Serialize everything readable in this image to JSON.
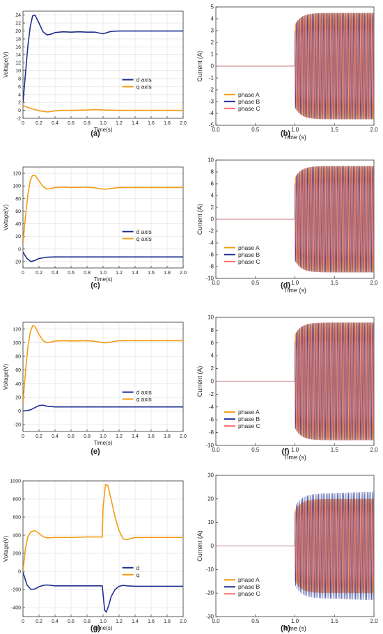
{
  "colors": {
    "d_axis": "#1f2e8f",
    "q_axis": "#f39c12",
    "phase_A": "#f39c12",
    "phase_B": "#1f2e8f",
    "phase_C": "#ff6b6b"
  },
  "chart_data": [
    {
      "id": "a",
      "type": "line",
      "caption": "(a)",
      "xlabel": "Time(s)",
      "ylabel": "Voltage(V)",
      "xlim": [
        0,
        2.0
      ],
      "ylim": [
        -2,
        25
      ],
      "xticks": [
        "0",
        "0.2",
        "0.4",
        "0.6",
        "0.8",
        "1.0",
        "1.2",
        "1.4",
        "1.6",
        "1.8",
        "2.0"
      ],
      "yticks": [
        "-2",
        "0",
        "2",
        "4",
        "6",
        "8",
        "10",
        "12",
        "14",
        "16",
        "18",
        "20",
        "22",
        "24"
      ],
      "grid": true,
      "legend": "center-right",
      "series": [
        {
          "name": "d axis",
          "color": "#1f2e8f",
          "x": [
            0,
            0.03,
            0.06,
            0.09,
            0.12,
            0.15,
            0.2,
            0.25,
            0.3,
            0.35,
            0.4,
            0.5,
            0.6,
            0.7,
            0.8,
            0.9,
            0.95,
            1.0,
            1.05,
            1.1,
            1.2,
            1.4,
            1.6,
            1.8,
            2.0
          ],
          "y": [
            2,
            9,
            16,
            21,
            23.8,
            24,
            22,
            19.8,
            19,
            19.2,
            19.6,
            19.8,
            19.7,
            19.8,
            19.7,
            19.7,
            19.5,
            19.3,
            19.6,
            19.9,
            20,
            20,
            20,
            20,
            20
          ]
        },
        {
          "name": "q axis",
          "color": "#f39c12",
          "x": [
            0,
            0.05,
            0.1,
            0.2,
            0.3,
            0.35,
            0.4,
            0.5,
            0.6,
            0.8,
            0.9,
            1.0,
            1.2,
            1.4,
            1.6,
            1.8,
            2.0
          ],
          "y": [
            1.2,
            0.8,
            0.5,
            -0.1,
            -0.4,
            -0.3,
            -0.1,
            0,
            0,
            0.1,
            0.2,
            0.1,
            0,
            0,
            0,
            0,
            0
          ]
        }
      ]
    },
    {
      "id": "b",
      "type": "line",
      "caption": "(b)",
      "xlabel": "Time (s)",
      "ylabel": "Current (A)",
      "xlim": [
        0,
        2.0
      ],
      "ylim": [
        -5,
        5
      ],
      "xticks": [
        "0.0",
        "0.5",
        "1.0",
        "1.5",
        "2.0"
      ],
      "yticks": [
        "-5",
        "-4",
        "-3",
        "-2",
        "-1",
        "0",
        "1",
        "2",
        "3",
        "4",
        "5"
      ],
      "grid": false,
      "legend": "lower-left",
      "t_start": 1.0,
      "amplitude_initial": 3.5,
      "amplitude_final": 4.5,
      "series": [
        {
          "name": "phase A",
          "color": "#f39c12"
        },
        {
          "name": "phase B",
          "color": "#1f2e8f"
        },
        {
          "name": "phase C",
          "color": "#ff6b6b"
        }
      ]
    },
    {
      "id": "c",
      "type": "line",
      "caption": "(c)",
      "xlabel": "Time(s)",
      "ylabel": "Voltage(V)",
      "xlim": [
        0,
        2.0
      ],
      "ylim": [
        -30,
        130
      ],
      "xticks": [
        "0",
        "0.2",
        "0.4",
        "0.6",
        "0.8",
        "1.0",
        "1.2",
        "1.4",
        "1.6",
        "1.8",
        "2.0"
      ],
      "yticks": [
        "-20",
        "0",
        "20",
        "40",
        "60",
        "80",
        "100",
        "120"
      ],
      "grid": true,
      "legend": "center-right",
      "series": [
        {
          "name": "d axis",
          "color": "#1f2e8f",
          "x": [
            0,
            0.05,
            0.1,
            0.15,
            0.2,
            0.3,
            0.4,
            0.6,
            0.8,
            1.0,
            1.2,
            1.4,
            1.6,
            1.8,
            2.0
          ],
          "y": [
            -5,
            -15,
            -20,
            -18,
            -15,
            -13,
            -12.5,
            -12.5,
            -12.5,
            -12.5,
            -12.5,
            -12.5,
            -12.5,
            -12.5,
            -12.5
          ]
        },
        {
          "name": "q axis",
          "color": "#f39c12",
          "x": [
            0,
            0.03,
            0.06,
            0.09,
            0.12,
            0.15,
            0.2,
            0.25,
            0.3,
            0.35,
            0.4,
            0.5,
            0.6,
            0.8,
            0.9,
            1.0,
            1.05,
            1.1,
            1.2,
            1.4,
            1.6,
            1.8,
            2.0
          ],
          "y": [
            10,
            50,
            85,
            108,
            117,
            117,
            108,
            99,
            95,
            96,
            97.5,
            98,
            97.5,
            98,
            97,
            95,
            95,
            96,
            97.5,
            97.5,
            97.5,
            97.5,
            97.5
          ]
        }
      ]
    },
    {
      "id": "d",
      "type": "line",
      "caption": "(d)",
      "xlabel": "Time (s)",
      "ylabel": "Current (A)",
      "xlim": [
        0,
        2.0
      ],
      "ylim": [
        -10,
        10
      ],
      "xticks": [
        "0.0",
        "0.5",
        "1.0",
        "1.5",
        "2.0"
      ],
      "yticks": [
        "-10",
        "-8",
        "-6",
        "-4",
        "-2",
        "0",
        "2",
        "4",
        "6",
        "8",
        "10"
      ],
      "grid": false,
      "legend": "lower-left",
      "t_start": 1.0,
      "amplitude_initial": 7,
      "amplitude_final": 9,
      "series": [
        {
          "name": "phase A",
          "color": "#f39c12"
        },
        {
          "name": "phase B",
          "color": "#1f2e8f"
        },
        {
          "name": "phase C",
          "color": "#ff6b6b"
        }
      ]
    },
    {
      "id": "e",
      "type": "line",
      "caption": "(e)",
      "xlabel": "Time(s)",
      "ylabel": "Voltage(V)",
      "xlim": [
        0,
        2.0
      ],
      "ylim": [
        -30,
        130
      ],
      "xticks": [
        "0",
        "0.2",
        "0.4",
        "0.6",
        "0.8",
        "1.0",
        "1.2",
        "1.4",
        "1.6",
        "1.8",
        "2.0"
      ],
      "yticks": [
        "-20",
        "0",
        "20",
        "40",
        "60",
        "80",
        "100",
        "120"
      ],
      "grid": true,
      "legend": "center-right",
      "series": [
        {
          "name": "d axis",
          "color": "#1f2e8f",
          "x": [
            0,
            0.05,
            0.1,
            0.15,
            0.2,
            0.25,
            0.3,
            0.4,
            0.6,
            0.8,
            1.0,
            1.2,
            1.4,
            1.6,
            1.8,
            2.0
          ],
          "y": [
            0,
            0.5,
            2,
            5,
            8,
            8.5,
            7,
            6,
            6,
            6,
            6,
            6,
            6,
            6,
            6,
            6
          ]
        },
        {
          "name": "q axis",
          "color": "#f39c12",
          "x": [
            0,
            0.03,
            0.06,
            0.09,
            0.12,
            0.15,
            0.2,
            0.25,
            0.3,
            0.35,
            0.4,
            0.5,
            0.6,
            0.8,
            0.9,
            1.0,
            1.05,
            1.1,
            1.2,
            1.4,
            1.6,
            1.8,
            2.0
          ],
          "y": [
            12,
            55,
            92,
            115,
            125,
            124,
            112,
            103,
            100,
            101,
            102.5,
            103,
            102.5,
            103,
            102,
            100,
            100,
            101,
            103,
            103,
            103,
            103,
            103
          ]
        }
      ]
    },
    {
      "id": "f",
      "type": "line",
      "caption": "(f)",
      "xlabel": "Time (s)",
      "ylabel": "Current (A)",
      "xlim": [
        0,
        2.0
      ],
      "ylim": [
        -10,
        10
      ],
      "xticks": [
        "0.0",
        "0.5",
        "1.0",
        "1.5",
        "2.0"
      ],
      "yticks": [
        "-10",
        "-8",
        "-6",
        "-4",
        "-2",
        "0",
        "2",
        "4",
        "6",
        "8",
        "10"
      ],
      "grid": false,
      "legend": "lower-left",
      "t_start": 1.0,
      "amplitude_initial": 7.3,
      "amplitude_final": 9.2,
      "series": [
        {
          "name": "phase A",
          "color": "#f39c12"
        },
        {
          "name": "phase B",
          "color": "#1f2e8f"
        },
        {
          "name": "phase C",
          "color": "#ff6b6b"
        }
      ]
    },
    {
      "id": "g",
      "type": "line",
      "caption": "(g)",
      "xlabel": "Time(s)",
      "ylabel": "Voltage(V)",
      "xlim": [
        0,
        2.0
      ],
      "ylim": [
        -500,
        1000
      ],
      "xticks": [
        "0",
        "0.2",
        "0.4",
        "0.6",
        "0.8",
        "1.0",
        "1.2",
        "1.4",
        "1.6",
        "1.8",
        "2.0"
      ],
      "yticks": [
        "-400",
        "-200",
        "0",
        "200",
        "400",
        "600",
        "800",
        "1000"
      ],
      "grid": true,
      "legend": "center-right",
      "series": [
        {
          "name": "d",
          "color": "#1f2e8f",
          "x": [
            0,
            0.05,
            0.1,
            0.15,
            0.2,
            0.25,
            0.3,
            0.4,
            0.6,
            0.8,
            0.97,
            0.99,
            1.0,
            1.02,
            1.04,
            1.07,
            1.1,
            1.15,
            1.2,
            1.25,
            1.3,
            1.4,
            1.6,
            1.8,
            2.0
          ],
          "y": [
            -10,
            -150,
            -200,
            -195,
            -170,
            -155,
            -150,
            -160,
            -160,
            -160,
            -160,
            -160,
            -250,
            -430,
            -450,
            -380,
            -280,
            -200,
            -165,
            -155,
            -160,
            -165,
            -165,
            -165,
            -165
          ]
        },
        {
          "name": "q",
          "color": "#f39c12",
          "x": [
            0,
            0.03,
            0.06,
            0.1,
            0.15,
            0.2,
            0.25,
            0.3,
            0.4,
            0.6,
            0.8,
            0.99,
            1.0,
            1.03,
            1.06,
            1.1,
            1.15,
            1.2,
            1.25,
            1.3,
            1.35,
            1.4,
            1.6,
            1.8,
            2.0
          ],
          "y": [
            0,
            250,
            380,
            440,
            450,
            420,
            385,
            370,
            375,
            375,
            380,
            380,
            700,
            960,
            950,
            800,
            600,
            450,
            360,
            350,
            365,
            375,
            375,
            375,
            375
          ]
        }
      ]
    },
    {
      "id": "h",
      "type": "line",
      "caption": "(h)",
      "xlabel": "Time (s)",
      "ylabel": "Current (A)",
      "xlim": [
        0,
        2.0
      ],
      "ylim": [
        -30,
        30
      ],
      "xticks": [
        "0.0",
        "0.5",
        "1.0",
        "1.5",
        "2.0"
      ],
      "yticks": [
        "-30",
        "-20",
        "-10",
        "0",
        "10",
        "20",
        "30"
      ],
      "grid": false,
      "legend": "lower-left",
      "t_start": 1.0,
      "amplitude_initial": 15,
      "amplitude_final": 20,
      "series": [
        {
          "name": "phase A",
          "color": "#f39c12"
        },
        {
          "name": "phase B",
          "color": "#1f2e8f"
        },
        {
          "name": "phase C",
          "color": "#ff6b6b"
        }
      ]
    }
  ]
}
